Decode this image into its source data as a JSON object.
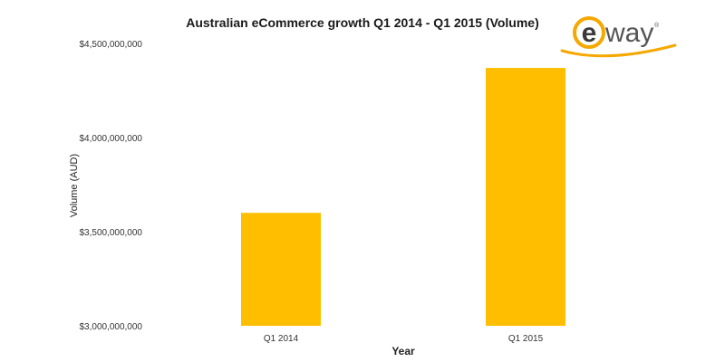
{
  "chart_data": {
    "type": "bar",
    "title": "Australian eCommerce growth Q1 2014 - Q1 2015 (Volume)",
    "xlabel": "Year",
    "ylabel": "Volume (AUD)",
    "categories": [
      "Q1 2014",
      "Q1 2015"
    ],
    "values": [
      3600000000,
      4370000000
    ],
    "ylim": [
      3000000000,
      4500000000
    ],
    "yticks": [
      3000000000,
      3500000000,
      4000000000,
      4500000000
    ],
    "ytick_labels": [
      "$3,000,000,000",
      "$3,500,000,000",
      "$4,000,000,000",
      "$4,500,000,000"
    ],
    "bar_color": "#FFBF00",
    "grid": false,
    "legend": "none"
  },
  "logo": {
    "text": "eway",
    "registered": "®",
    "accent": "#F5A800"
  }
}
